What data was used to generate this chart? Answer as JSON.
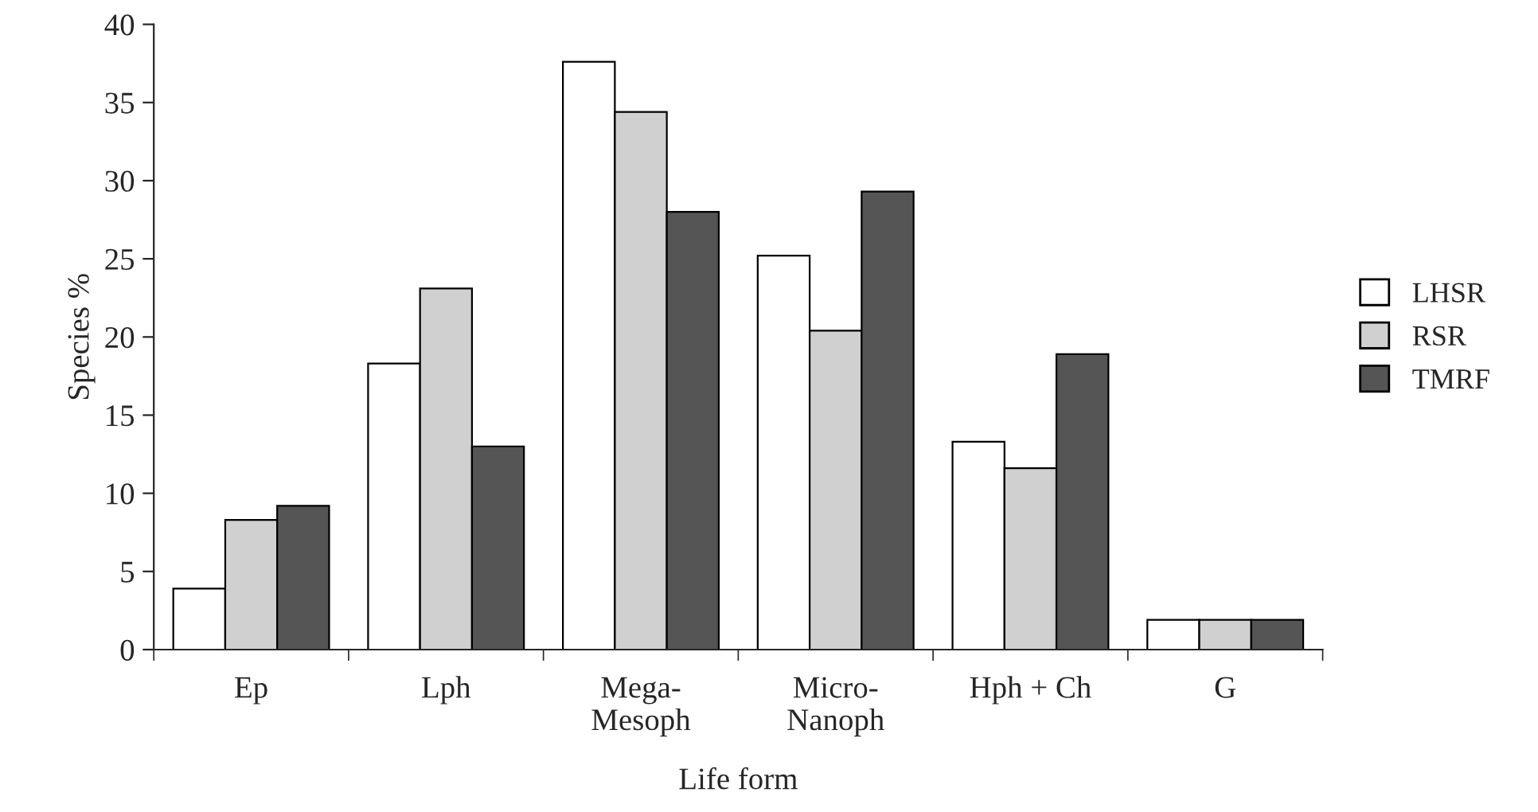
{
  "chart_data": {
    "type": "bar",
    "xlabel": "Life form",
    "ylabel": "Species %",
    "categories": [
      "Ep",
      "Lph",
      "Mega-\nMesoph",
      "Micro-\nNanoph",
      "Hph + Ch",
      "G"
    ],
    "series": [
      {
        "name": "LHSR",
        "color": "#ffffff",
        "values": [
          3.9,
          18.3,
          37.6,
          25.2,
          13.3,
          1.9
        ]
      },
      {
        "name": "RSR",
        "color": "#d0d0d0",
        "values": [
          8.3,
          23.1,
          34.4,
          20.4,
          11.6,
          1.9
        ]
      },
      {
        "name": "TMRF",
        "color": "#555555",
        "values": [
          9.2,
          13.0,
          28.0,
          29.3,
          18.9,
          1.9
        ]
      }
    ],
    "ylim": [
      0,
      40
    ],
    "yticks": [
      0,
      5,
      10,
      15,
      20,
      25,
      30,
      35,
      40
    ],
    "grid": false,
    "legend": "right"
  }
}
